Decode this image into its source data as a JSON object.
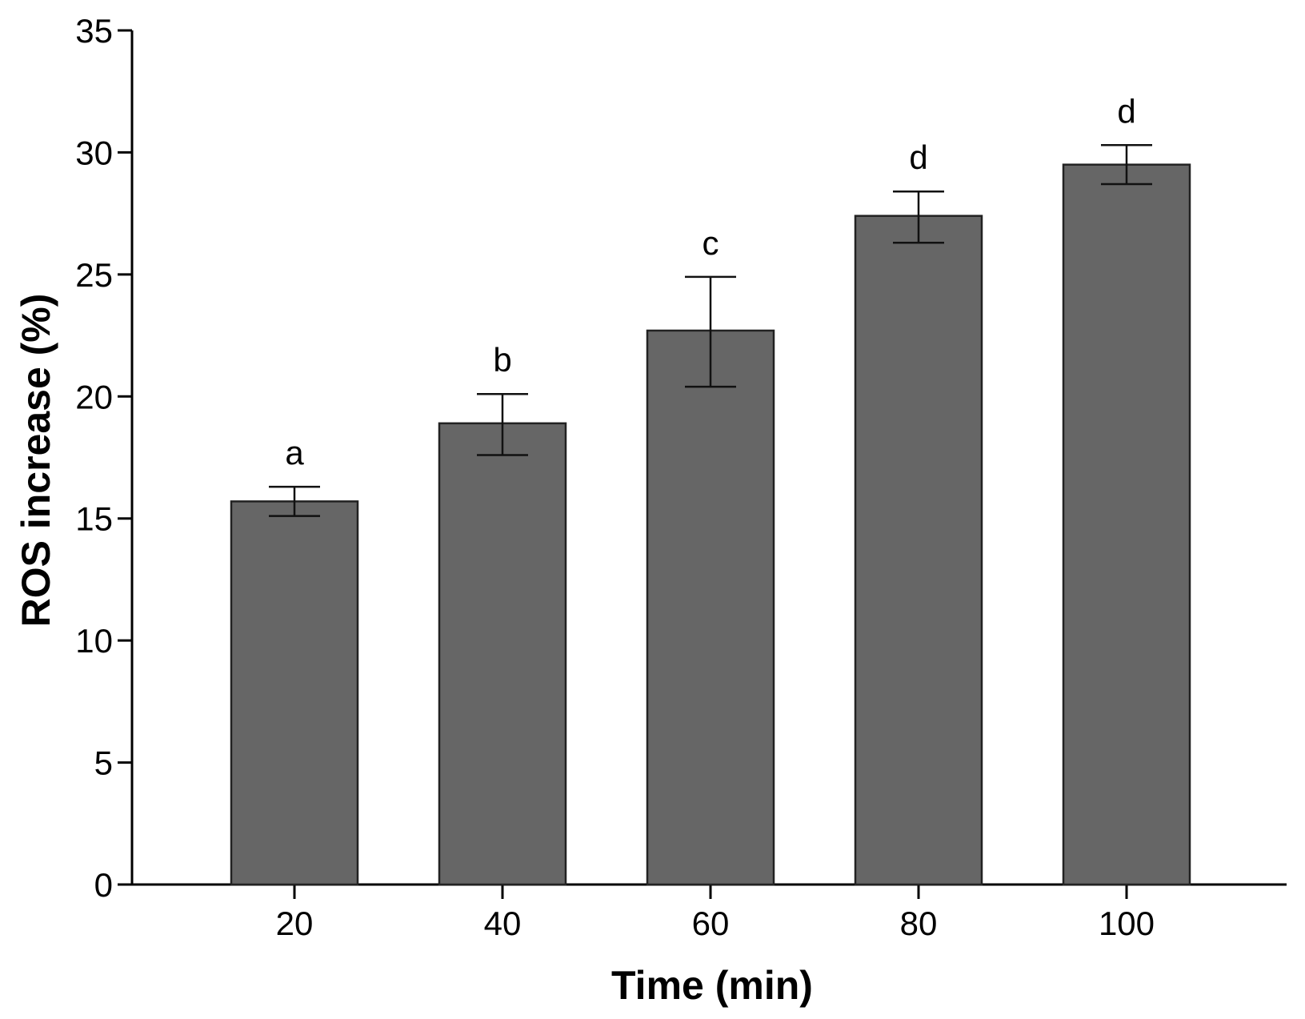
{
  "chart_data": {
    "type": "bar",
    "categories": [
      "20",
      "40",
      "60",
      "80",
      "100"
    ],
    "values": [
      15.7,
      18.9,
      22.7,
      27.4,
      29.5
    ],
    "error_upper": [
      16.3,
      20.1,
      24.9,
      28.4,
      30.3
    ],
    "error_lower": [
      15.1,
      17.6,
      20.4,
      26.3,
      28.7
    ],
    "significance_labels": [
      "a",
      "b",
      "c",
      "d",
      "d"
    ],
    "xlabel": "Time (min)",
    "ylabel": "ROS increase (%)",
    "ylim": [
      0,
      35
    ],
    "yticks": [
      0,
      5,
      10,
      15,
      20,
      25,
      30,
      35
    ],
    "xticks": [
      20,
      40,
      60,
      80,
      100
    ],
    "bar_color": "#666666",
    "grid": false
  }
}
